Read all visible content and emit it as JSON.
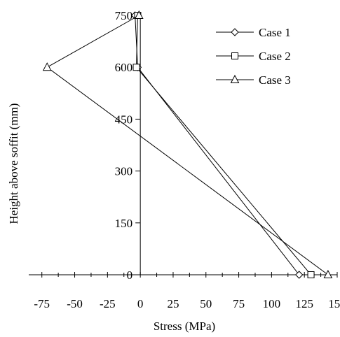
{
  "chart_data": {
    "type": "line",
    "xlabel": "Stress (MPa)",
    "ylabel": "Height above soffit (mm)",
    "xlim": [
      -85,
      150
    ],
    "ylim": [
      0,
      750
    ],
    "xticks": [
      -75,
      -50,
      -25,
      0,
      25,
      50,
      75,
      100,
      125,
      150
    ],
    "yticks": [
      0,
      150,
      300,
      450,
      600,
      750
    ],
    "x_tick_labels": [
      "-75",
      "-50",
      "-25",
      "0",
      "25",
      "50",
      "75",
      "100",
      "125",
      "150"
    ],
    "y_tick_labels": [
      "0",
      "150",
      "300",
      "450",
      "600",
      "750"
    ],
    "grid": false,
    "legend_position": "top-right",
    "series": [
      {
        "name": "Case 1",
        "marker": "diamond",
        "points": [
          [
            121,
            0
          ],
          [
            -2,
            600
          ],
          [
            -4,
            750
          ]
        ]
      },
      {
        "name": "Case 2",
        "marker": "square",
        "points": [
          [
            130,
            0
          ],
          [
            -3,
            600
          ],
          [
            -2,
            750
          ]
        ]
      },
      {
        "name": "Case 3",
        "marker": "triangle",
        "points": [
          [
            143,
            0
          ],
          [
            -71,
            600
          ],
          [
            -1,
            750
          ]
        ]
      }
    ]
  }
}
